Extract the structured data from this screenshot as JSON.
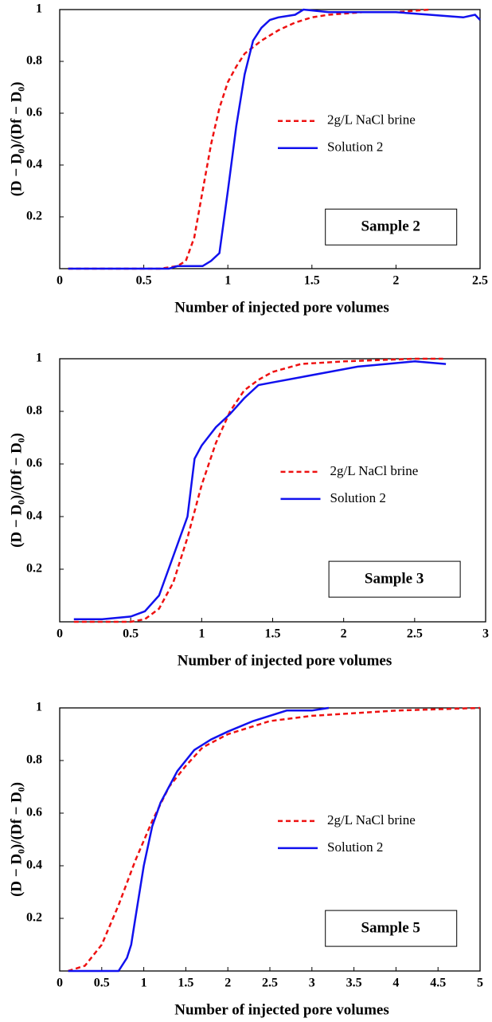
{
  "chart_data": [
    {
      "type": "line",
      "x_label": "Number of injected pore volumes",
      "y_label": "(D − D₀)/(Df − D₀)",
      "annotation": "Sample 2",
      "legend": "center-right",
      "grid": false,
      "xlim": [
        0,
        2.5
      ],
      "xticks": [
        0,
        0.5,
        1,
        1.5,
        2,
        2.5
      ],
      "ylim": [
        0,
        1
      ],
      "yticks": [
        0.2,
        0.4,
        0.6,
        0.8,
        1
      ],
      "series": [
        {
          "name": "2g/L NaCl brine",
          "color": "#ee1111",
          "dashed": true,
          "x": [
            0.05,
            0.6,
            0.7,
            0.75,
            0.8,
            0.85,
            0.9,
            0.95,
            1.0,
            1.05,
            1.1,
            1.2,
            1.3,
            1.4,
            1.5,
            1.6,
            1.8,
            2.0,
            2.2
          ],
          "values": [
            0,
            0,
            0.01,
            0.03,
            0.12,
            0.3,
            0.48,
            0.62,
            0.72,
            0.78,
            0.83,
            0.88,
            0.92,
            0.95,
            0.97,
            0.98,
            0.99,
            0.99,
            1
          ]
        },
        {
          "name": "Solution 2",
          "color": "#1111ee",
          "dashed": false,
          "x": [
            0.05,
            0.65,
            0.7,
            0.85,
            0.9,
            0.95,
            1.0,
            1.05,
            1.1,
            1.15,
            1.2,
            1.25,
            1.3,
            1.4,
            1.45,
            1.6,
            1.8,
            2.0,
            2.2,
            2.4,
            2.47,
            2.5
          ],
          "values": [
            0,
            0,
            0.01,
            0.01,
            0.03,
            0.06,
            0.3,
            0.55,
            0.75,
            0.88,
            0.93,
            0.96,
            0.97,
            0.98,
            1,
            0.99,
            0.99,
            0.99,
            0.98,
            0.97,
            0.98,
            0.96
          ]
        }
      ]
    },
    {
      "type": "line",
      "x_label": "Number of injected pore volumes",
      "y_label": "(D − D₀)/(Df − D₀)",
      "annotation": "Sample 3",
      "legend": "center-right",
      "grid": false,
      "xlim": [
        0,
        3
      ],
      "xticks": [
        0,
        0.5,
        1,
        1.5,
        2,
        2.5,
        3
      ],
      "ylim": [
        0,
        1
      ],
      "yticks": [
        0.2,
        0.4,
        0.6,
        0.8,
        1
      ],
      "series": [
        {
          "name": "2g/L NaCl brine",
          "color": "#ee1111",
          "dashed": true,
          "x": [
            0.1,
            0.5,
            0.6,
            0.7,
            0.8,
            0.9,
            1.0,
            1.1,
            1.2,
            1.3,
            1.4,
            1.5,
            1.7,
            2.0,
            2.5,
            2.7
          ],
          "values": [
            0,
            0,
            0.01,
            0.05,
            0.15,
            0.32,
            0.52,
            0.68,
            0.8,
            0.88,
            0.92,
            0.95,
            0.98,
            0.99,
            1,
            1
          ]
        },
        {
          "name": "Solution 2",
          "color": "#1111ee",
          "dashed": false,
          "x": [
            0.1,
            0.3,
            0.5,
            0.6,
            0.7,
            0.8,
            0.9,
            0.95,
            1.0,
            1.1,
            1.2,
            1.3,
            1.4,
            1.5,
            1.7,
            1.9,
            2.1,
            2.3,
            2.5,
            2.72
          ],
          "values": [
            0.01,
            0.01,
            0.02,
            0.04,
            0.1,
            0.25,
            0.4,
            0.62,
            0.67,
            0.74,
            0.79,
            0.85,
            0.9,
            0.91,
            0.93,
            0.95,
            0.97,
            0.98,
            0.99,
            0.98
          ]
        }
      ]
    },
    {
      "type": "line",
      "x_label": "Number of injected pore volumes",
      "y_label": "(D − D₀)/(Df − D₀)",
      "annotation": "Sample 5",
      "legend": "center-right",
      "grid": false,
      "xlim": [
        0,
        5
      ],
      "xticks": [
        0,
        0.5,
        1,
        1.5,
        2,
        2.5,
        3,
        3.5,
        4,
        4.5,
        5
      ],
      "ylim": [
        0,
        1
      ],
      "yticks": [
        0.2,
        0.4,
        0.6,
        0.8,
        1
      ],
      "series": [
        {
          "name": "2g/L NaCl brine",
          "color": "#ee1111",
          "dashed": true,
          "x": [
            0.1,
            0.3,
            0.5,
            0.7,
            0.9,
            1.1,
            1.3,
            1.5,
            1.7,
            2.0,
            2.5,
            3.0,
            3.5,
            4.0,
            5.0
          ],
          "values": [
            0,
            0.02,
            0.1,
            0.25,
            0.42,
            0.57,
            0.7,
            0.78,
            0.85,
            0.9,
            0.95,
            0.97,
            0.98,
            0.99,
            1
          ]
        },
        {
          "name": "Solution 2",
          "color": "#1111ee",
          "dashed": false,
          "x": [
            0.1,
            0.7,
            0.8,
            0.85,
            0.9,
            1.0,
            1.1,
            1.2,
            1.4,
            1.6,
            1.8,
            2.0,
            2.3,
            2.7,
            3.0,
            3.2
          ],
          "values": [
            0,
            0,
            0.05,
            0.1,
            0.2,
            0.4,
            0.55,
            0.64,
            0.76,
            0.84,
            0.88,
            0.91,
            0.95,
            0.99,
            0.99,
            1
          ]
        }
      ]
    }
  ]
}
